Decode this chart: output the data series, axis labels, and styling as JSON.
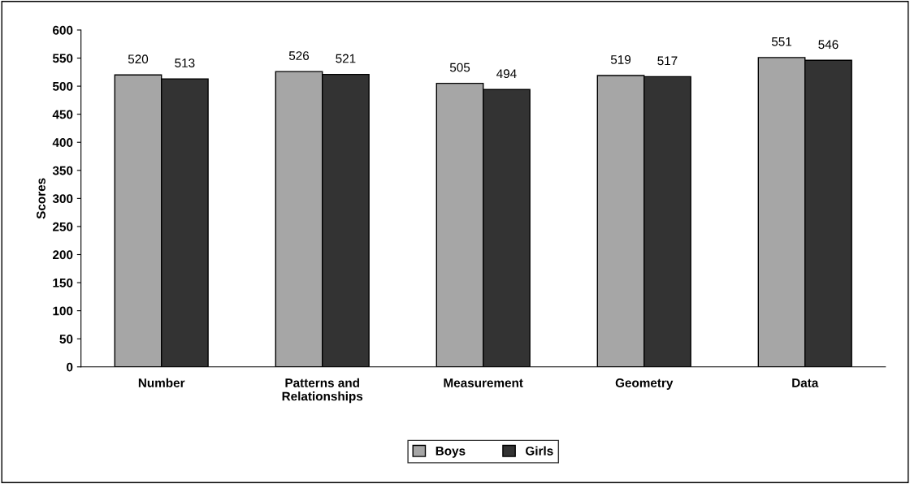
{
  "chart_data": {
    "type": "bar",
    "ylabel": "Scores",
    "categories": [
      "Number",
      "Patterns and\nRelationships",
      "Measurement",
      "Geometry",
      "Data"
    ],
    "series": [
      {
        "name": "Boys",
        "color": "#a6a6a6",
        "values": [
          520,
          526,
          505,
          519,
          551
        ]
      },
      {
        "name": "Girls",
        "color": "#333333",
        "values": [
          513,
          521,
          494,
          517,
          546
        ]
      }
    ],
    "ylim": [
      0,
      600
    ],
    "yticks": [
      0,
      50,
      100,
      150,
      200,
      250,
      300,
      350,
      400,
      450,
      500,
      550,
      600
    ],
    "grid": false,
    "legend": "bottom",
    "data_labels": true
  }
}
